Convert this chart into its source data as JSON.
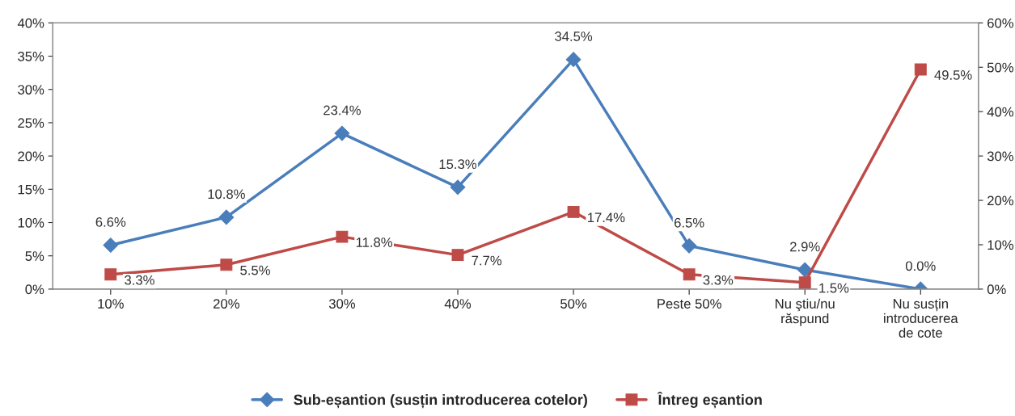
{
  "chart_data": {
    "type": "line",
    "categories": [
      "10%",
      "20%",
      "30%",
      "40%",
      "50%",
      "Peste 50%",
      "Nu ştiu/nu\nrăspund",
      "Nu susțin\nintroducerea\nde cote"
    ],
    "series": [
      {
        "name": "Sub-eșantion (susțin introducerea cotelor)",
        "color": "#4a7ebb",
        "marker": "diamond",
        "values": [
          6.6,
          10.8,
          23.4,
          15.3,
          34.5,
          6.5,
          2.9,
          0.0
        ],
        "value_labels": [
          "6.6%",
          "10.8%",
          "23.4%",
          "15.3%",
          "34.5%",
          "6.5%",
          "2.9%",
          "0.0%"
        ]
      },
      {
        "name": "Întreg eșantion",
        "color": "#be4b48",
        "marker": "square",
        "axis": "y2",
        "values": [
          3.3,
          5.5,
          11.8,
          7.7,
          17.4,
          3.3,
          1.5,
          49.5
        ],
        "value_labels": [
          "3.3%",
          "5.5%",
          "11.8%",
          "7.7%",
          "17.4%",
          "3.3%",
          "1.5%",
          "49.5%"
        ]
      }
    ],
    "ylim": [
      0,
      40
    ],
    "yticks": [
      {
        "value": 0,
        "label": "0%"
      },
      {
        "value": 5,
        "label": "5%"
      },
      {
        "value": 10,
        "label": "10%"
      },
      {
        "value": 15,
        "label": "15%"
      },
      {
        "value": 20,
        "label": "20%"
      },
      {
        "value": 25,
        "label": "25%"
      },
      {
        "value": 30,
        "label": "30%"
      },
      {
        "value": 35,
        "label": "35%"
      },
      {
        "value": 40,
        "label": "40%"
      }
    ],
    "y2lim": [
      0,
      60
    ],
    "y2ticks": [
      {
        "value": 0,
        "label": "0%"
      },
      {
        "value": 10,
        "label": "10%"
      },
      {
        "value": 20,
        "label": "20%"
      },
      {
        "value": 30,
        "label": "30%"
      },
      {
        "value": 40,
        "label": "40%"
      },
      {
        "value": 50,
        "label": "50%"
      },
      {
        "value": 60,
        "label": "60%"
      }
    ],
    "legend": "bottom",
    "line_style": "solid"
  }
}
